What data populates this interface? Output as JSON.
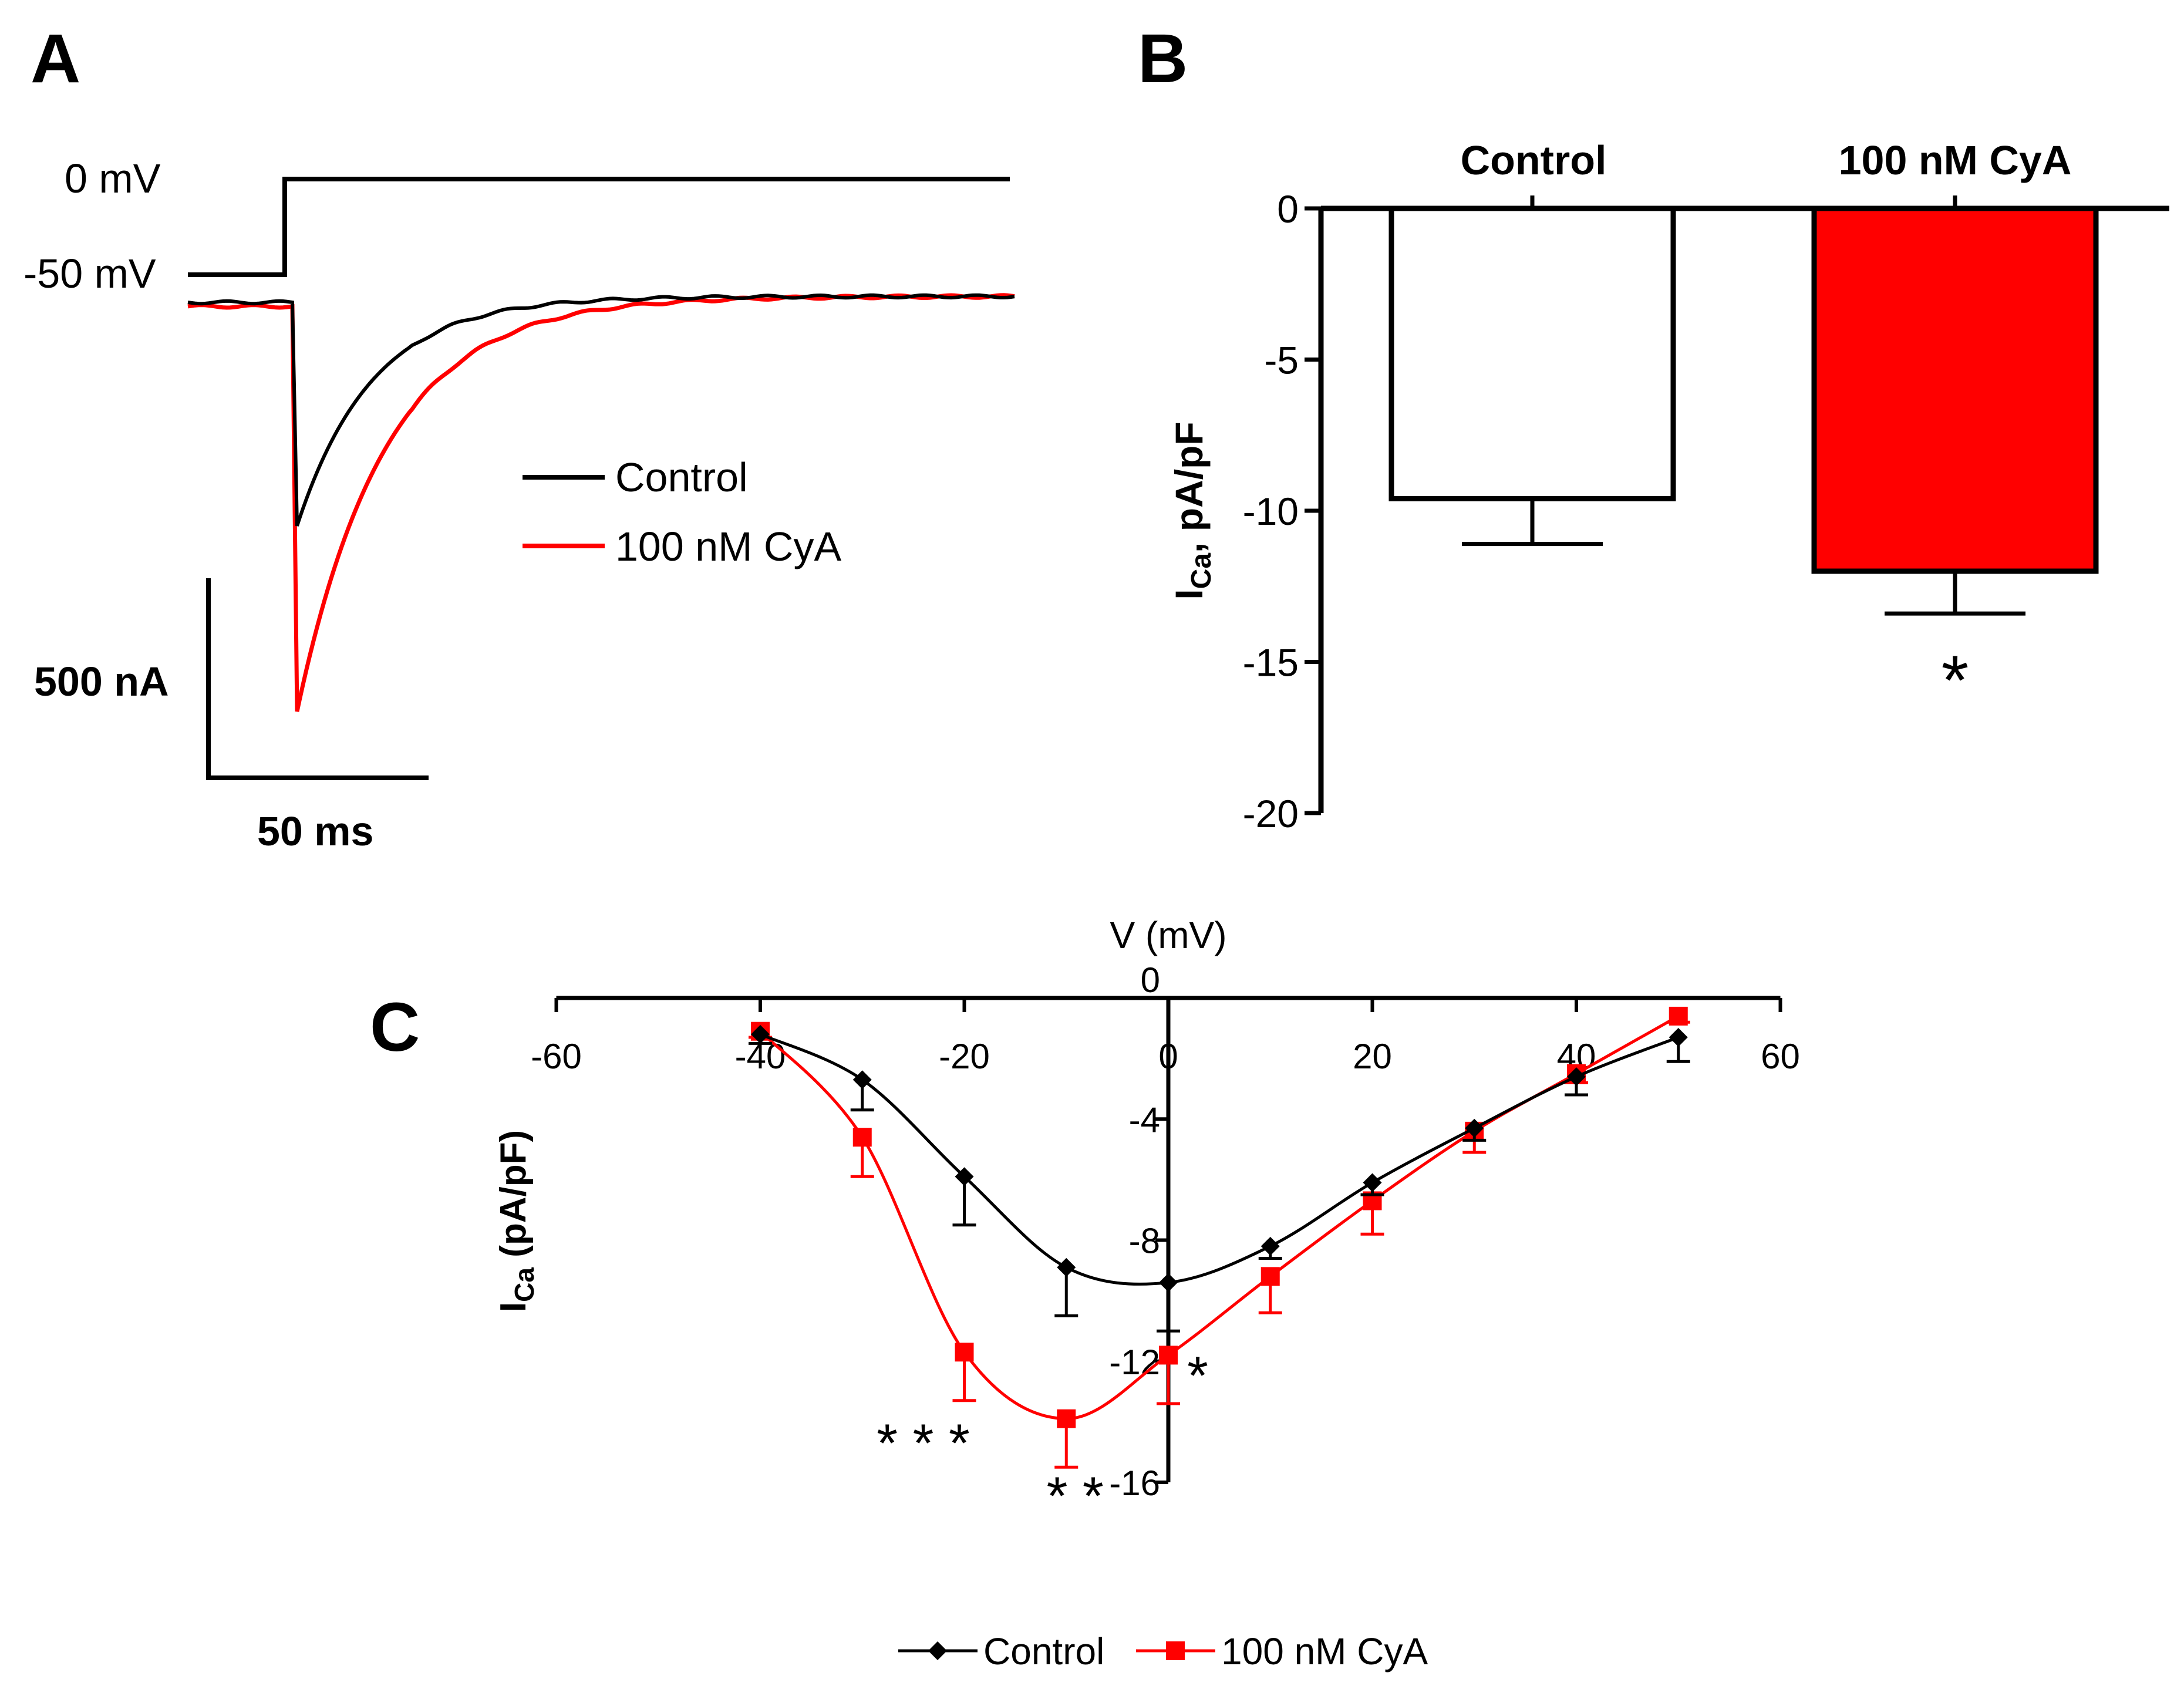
{
  "colors": {
    "control": "#000000",
    "cya": "#ff0000",
    "background": "#ffffff"
  },
  "panel_labels": {
    "a": "A",
    "b": "B",
    "c": "C"
  },
  "chart_data": [
    {
      "panel": "A",
      "type": "line",
      "title": "",
      "protocol_labels": {
        "test": "0 mV",
        "hold": "-50 mV"
      },
      "scale_bar": {
        "current": "500 nA",
        "time": "50 ms"
      },
      "legend": {
        "control": "Control",
        "cya": "100 nM CyA"
      },
      "series": [
        {
          "name": "Control",
          "baseline_nA": 0,
          "peak_nA": -560,
          "steady_nA": 15,
          "tau_ms": 17
        },
        {
          "name": "100 nM CyA",
          "baseline_nA": -10,
          "peak_nA": -1025,
          "steady_nA": 15,
          "tau_ms": 20
        }
      ]
    },
    {
      "panel": "B",
      "type": "bar",
      "title": "",
      "categories": [
        "Control",
        "100 nM CyA"
      ],
      "values": [
        -9.6,
        -12.0
      ],
      "errors": [
        1.5,
        1.4
      ],
      "ylabel": {
        "main": "I",
        "sub": "Ca",
        "rest": ", pA/pF"
      },
      "ylim": [
        -20,
        0
      ],
      "yticks": [
        "0",
        "-5",
        "-10",
        "-15",
        "-20"
      ],
      "significance": [
        "",
        "*"
      ]
    },
    {
      "panel": "C",
      "type": "line",
      "title": "",
      "xlabel": "V (mV)",
      "ylabel": {
        "main": "I",
        "sub": "Ca",
        "rest": " (pA/pF)"
      },
      "xlim": [
        -60,
        60
      ],
      "ylim": [
        -16,
        0
      ],
      "xticks": [
        "-60",
        "-40",
        "-20",
        "0",
        "20",
        "40",
        "60"
      ],
      "yticks": [
        "0",
        "-4",
        "-8",
        "-12",
        "-16"
      ],
      "x": [
        -40,
        -30,
        -20,
        -10,
        0,
        10,
        20,
        30,
        40,
        50
      ],
      "series": [
        {
          "name": "Control",
          "values": [
            -1.2,
            -2.7,
            -5.9,
            -8.9,
            -9.4,
            -8.2,
            -6.1,
            -4.3,
            -2.6,
            -1.3
          ],
          "errors": [
            0.3,
            1.0,
            1.6,
            1.6,
            1.6,
            0.4,
            0.4,
            0.4,
            0.6,
            0.8
          ]
        },
        {
          "name": "100 nM CyA",
          "values": [
            -1.1,
            -4.6,
            -11.7,
            -13.9,
            -11.8,
            -9.2,
            -6.7,
            -4.4,
            -2.5,
            -0.6
          ],
          "errors": [
            0.2,
            1.3,
            1.6,
            1.6,
            1.6,
            1.2,
            1.1,
            0.7,
            0.3,
            0.2
          ]
        }
      ],
      "significance": [
        {
          "x": -20,
          "label": "* * *"
        },
        {
          "x": -10,
          "label": "* *"
        },
        {
          "x": 0,
          "label": "*"
        }
      ],
      "legend": {
        "control": "Control",
        "cya": "100 nM CyA"
      }
    }
  ]
}
